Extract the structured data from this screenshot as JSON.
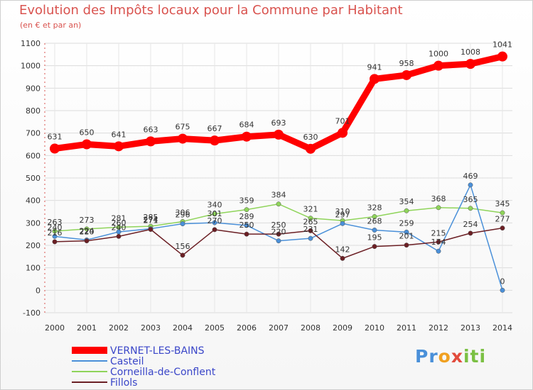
{
  "chart_data": {
    "type": "line",
    "title": "Evolution des Impôts locaux pour la Commune par Habitant",
    "subtitle": "(en € et par an)",
    "x": [
      "2000",
      "2001",
      "2002",
      "2003",
      "2004",
      "2005",
      "2006",
      "2007",
      "2008",
      "2009",
      "2010",
      "2011",
      "2012",
      "2013",
      "2014"
    ],
    "yticks": [
      -100,
      0,
      100,
      200,
      300,
      400,
      500,
      600,
      700,
      800,
      900,
      1000,
      1100
    ],
    "ylim": [
      -100,
      1100
    ],
    "grid": true,
    "series": [
      {
        "name": "VERNET-LES-BAINS",
        "color": "#ff0000",
        "values": [
          631,
          650,
          641,
          663,
          675,
          667,
          684,
          693,
          630,
          701,
          941,
          958,
          1000,
          1008,
          1041
        ]
      },
      {
        "name": "Casteil",
        "color": "#4a90d9",
        "values": [
          240,
          224,
          260,
          274,
          296,
          301,
          289,
          220,
          231,
          297,
          268,
          259,
          174,
          469,
          0
        ]
      },
      {
        "name": "Corneilla-de-Conflent",
        "color": "#8fd45a",
        "values": [
          263,
          273,
          281,
          285,
          306,
          340,
          359,
          384,
          321,
          310,
          328,
          354,
          368,
          365,
          345
        ]
      },
      {
        "name": "Fillols",
        "color": "#6b1f24",
        "values": [
          216,
          220,
          240,
          271,
          156,
          270,
          250,
          250,
          265,
          142,
          195,
          201,
          215,
          254,
          277
        ]
      }
    ],
    "data_labels": [
      [
        "631",
        "650",
        "641",
        "663",
        "675",
        "667",
        "684",
        "693",
        "630",
        "701",
        "941",
        "958",
        "1000",
        "1008",
        "1041"
      ],
      [
        "240",
        "224",
        "260",
        "274",
        "296",
        "301",
        "289",
        "220",
        "231",
        "297",
        "268",
        "259",
        "174",
        "469",
        "0"
      ],
      [
        "263",
        "273",
        "281",
        "285",
        "306",
        "340",
        "359",
        "384",
        "321",
        "310",
        "328",
        "354",
        "368",
        "365",
        "345"
      ],
      [
        "216",
        "220",
        "240",
        "271",
        "156",
        "270",
        "250",
        "250",
        "265",
        "142",
        "195",
        "201",
        "215",
        "254",
        "277"
      ]
    ],
    "legend_position": "bottom-left"
  },
  "logo": {
    "text": "Proxiti"
  }
}
